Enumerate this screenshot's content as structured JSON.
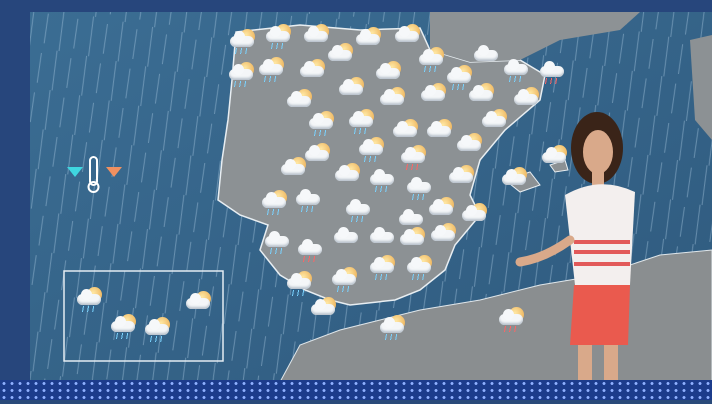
{
  "scene": "weather-broadcast",
  "legend": {
    "icons": [
      "min-temp-triangle-icon",
      "thermometer-icon",
      "max-temp-triangle-icon"
    ],
    "colors": {
      "min": "#3fd6e0",
      "max": "#f09060"
    }
  },
  "colors": {
    "sea": "#3e6a8e",
    "land": "#8a8f92",
    "frame": "#2d4f8a"
  },
  "forecast_icons": {
    "mainland": [
      "sun-cloud-rain",
      "sun-cloud-rain",
      "sun-cloud",
      "sun-cloud",
      "sun-cloud",
      "sun-cloud",
      "sun-cloud-rain",
      "sun-cloud-rain",
      "sun-cloud",
      "sun-cloud",
      "sun-cloud-rain",
      "sun-cloud-rain",
      "cloud",
      "cloud-rain",
      "cloud-storm",
      "sun-cloud",
      "sun-cloud",
      "sun-cloud",
      "sun-cloud",
      "sun-cloud",
      "sun-cloud",
      "sun-cloud-rain",
      "sun-cloud-rain",
      "sun-cloud",
      "sun-cloud",
      "sun-cloud",
      "sun-cloud",
      "sun-cloud-rain",
      "sun-cloud-storm",
      "sun-cloud",
      "sun-cloud",
      "sun-cloud",
      "cloud-rain",
      "cloud-rain",
      "sun-cloud",
      "sun-cloud",
      "sun-cloud",
      "sun-cloud-rain",
      "cloud-rain",
      "cloud-rain",
      "cloud",
      "sun-cloud",
      "sun-cloud",
      "cloud-rain",
      "cloud-storm",
      "cloud",
      "cloud",
      "sun-cloud",
      "sun-cloud",
      "sun-cloud-rain",
      "sun-cloud-rain",
      "sun-cloud-rain",
      "sun-cloud-rain",
      "sun-cloud",
      "sun-cloud-rain",
      "sun-cloud-storm"
    ],
    "canary_islands": [
      "sun-cloud-rain",
      "sun-cloud-rain",
      "sun-cloud-rain",
      "sun-cloud"
    ]
  }
}
